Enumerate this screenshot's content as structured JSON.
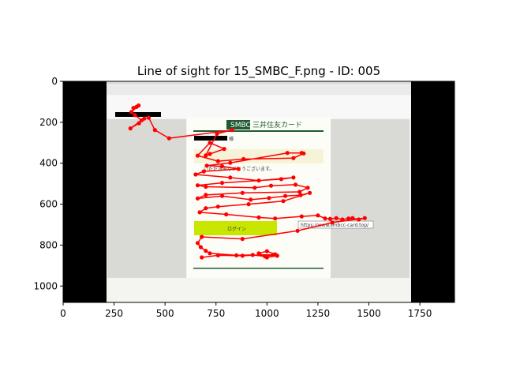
{
  "chart_data": {
    "type": "scatter",
    "title": "Line of sight for 15_SMBC_F.png - ID: 005",
    "xlabel": "",
    "ylabel": "",
    "xlim": [
      0,
      1920
    ],
    "ylim": [
      1080,
      0
    ],
    "x_ticks": [
      0,
      250,
      500,
      750,
      1000,
      1250,
      1500,
      1750
    ],
    "y_ticks": [
      0,
      200,
      400,
      600,
      800,
      1000
    ],
    "grid": false,
    "colors": {
      "gaze": "#ff0000",
      "letterbox": "#000000",
      "brand": "#1e5a32",
      "button": "#c8e600"
    },
    "background_screenshot": {
      "brand_label": "SMBC",
      "brand_jp": "三井住友カード",
      "login_button": "ログイン",
      "url_tooltip": "https://www.smbcc-card.top/",
      "heading_line": "様",
      "body_line": "いただきありがとうございます。"
    },
    "gaze_points": [
      [
        360,
        125
      ],
      [
        345,
        130
      ],
      [
        370,
        118
      ],
      [
        335,
        150
      ],
      [
        352,
        165
      ],
      [
        385,
        190
      ],
      [
        330,
        230
      ],
      [
        372,
        205
      ],
      [
        398,
        182
      ],
      [
        420,
        178
      ],
      [
        450,
        238
      ],
      [
        520,
        278
      ],
      [
        830,
        238
      ],
      [
        755,
        256
      ],
      [
        700,
        362
      ],
      [
        720,
        355
      ],
      [
        790,
        330
      ],
      [
        720,
        300
      ],
      [
        660,
        363
      ],
      [
        760,
        390
      ],
      [
        885,
        380
      ],
      [
        1130,
        375
      ],
      [
        1180,
        352
      ],
      [
        1170,
        350
      ],
      [
        1100,
        350
      ],
      [
        820,
        398
      ],
      [
        705,
        412
      ],
      [
        780,
        415
      ],
      [
        860,
        428
      ],
      [
        690,
        440
      ],
      [
        650,
        455
      ],
      [
        820,
        470
      ],
      [
        960,
        485
      ],
      [
        1130,
        470
      ],
      [
        1070,
        478
      ],
      [
        780,
        496
      ],
      [
        660,
        508
      ],
      [
        700,
        515
      ],
      [
        940,
        520
      ],
      [
        1020,
        510
      ],
      [
        1140,
        505
      ],
      [
        1200,
        520
      ],
      [
        1160,
        540
      ],
      [
        880,
        545
      ],
      [
        700,
        555
      ],
      [
        660,
        572
      ],
      [
        780,
        560
      ],
      [
        920,
        578
      ],
      [
        1010,
        570
      ],
      [
        1090,
        560
      ],
      [
        1165,
        556
      ],
      [
        1210,
        545
      ],
      [
        1080,
        585
      ],
      [
        910,
        600
      ],
      [
        760,
        612
      ],
      [
        700,
        620
      ],
      [
        670,
        640
      ],
      [
        800,
        650
      ],
      [
        960,
        665
      ],
      [
        1040,
        670
      ],
      [
        1170,
        660
      ],
      [
        1250,
        655
      ],
      [
        1285,
        670
      ],
      [
        1310,
        672
      ],
      [
        1340,
        668
      ],
      [
        1370,
        675
      ],
      [
        1400,
        670
      ],
      [
        1420,
        668
      ],
      [
        1450,
        675
      ],
      [
        1480,
        668
      ],
      [
        1320,
        690
      ],
      [
        1150,
        730
      ],
      [
        880,
        770
      ],
      [
        680,
        760
      ],
      [
        660,
        790
      ],
      [
        675,
        810
      ],
      [
        700,
        828
      ],
      [
        720,
        840
      ],
      [
        850,
        850
      ],
      [
        930,
        848
      ],
      [
        990,
        855
      ],
      [
        1030,
        848
      ],
      [
        1050,
        852
      ],
      [
        1000,
        860
      ],
      [
        960,
        840
      ],
      [
        1000,
        830
      ],
      [
        1040,
        845
      ],
      [
        880,
        852
      ],
      [
        760,
        850
      ],
      [
        680,
        860
      ]
    ]
  }
}
